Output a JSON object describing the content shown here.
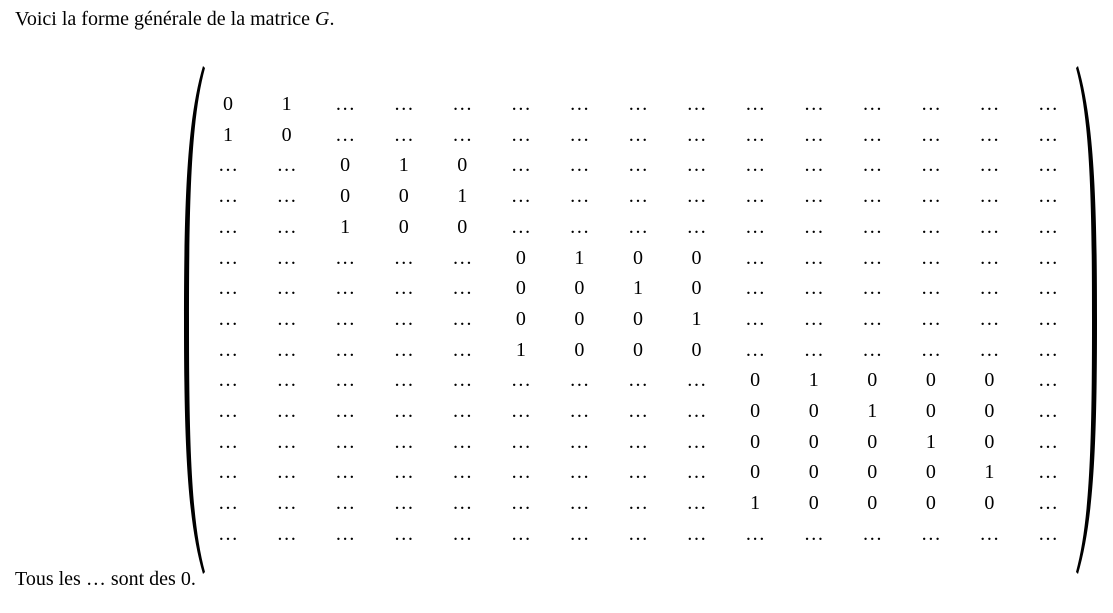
{
  "intro": {
    "text": "Voici la forme générale de la matrice ",
    "symbol": "G",
    "end": "."
  },
  "outro": {
    "before": "Tous les ",
    "dots": "…",
    "after": " sont des 0."
  },
  "matrix": {
    "ellipsis": "…",
    "rows": [
      [
        "0",
        "1",
        "…",
        "…",
        "…",
        "…",
        "…",
        "…",
        "…",
        "…",
        "…",
        "…",
        "…",
        "…",
        "…"
      ],
      [
        "1",
        "0",
        "…",
        "…",
        "…",
        "…",
        "…",
        "…",
        "…",
        "…",
        "…",
        "…",
        "…",
        "…",
        "…"
      ],
      [
        "…",
        "…",
        "0",
        "1",
        "0",
        "…",
        "…",
        "…",
        "…",
        "…",
        "…",
        "…",
        "…",
        "…",
        "…"
      ],
      [
        "…",
        "…",
        "0",
        "0",
        "1",
        "…",
        "…",
        "…",
        "…",
        "…",
        "…",
        "…",
        "…",
        "…",
        "…"
      ],
      [
        "…",
        "…",
        "1",
        "0",
        "0",
        "…",
        "…",
        "…",
        "…",
        "…",
        "…",
        "…",
        "…",
        "…",
        "…"
      ],
      [
        "…",
        "…",
        "…",
        "…",
        "…",
        "0",
        "1",
        "0",
        "0",
        "…",
        "…",
        "…",
        "…",
        "…",
        "…"
      ],
      [
        "…",
        "…",
        "…",
        "…",
        "…",
        "0",
        "0",
        "1",
        "0",
        "…",
        "…",
        "…",
        "…",
        "…",
        "…"
      ],
      [
        "…",
        "…",
        "…",
        "…",
        "…",
        "0",
        "0",
        "0",
        "1",
        "…",
        "…",
        "…",
        "…",
        "…",
        "…"
      ],
      [
        "…",
        "…",
        "…",
        "…",
        "…",
        "1",
        "0",
        "0",
        "0",
        "…",
        "…",
        "…",
        "…",
        "…",
        "…"
      ],
      [
        "…",
        "…",
        "…",
        "…",
        "…",
        "…",
        "…",
        "…",
        "…",
        "0",
        "1",
        "0",
        "0",
        "0",
        "…"
      ],
      [
        "…",
        "…",
        "…",
        "…",
        "…",
        "…",
        "…",
        "…",
        "…",
        "0",
        "0",
        "1",
        "0",
        "0",
        "…"
      ],
      [
        "…",
        "…",
        "…",
        "…",
        "…",
        "…",
        "…",
        "…",
        "…",
        "0",
        "0",
        "0",
        "1",
        "0",
        "…"
      ],
      [
        "…",
        "…",
        "…",
        "…",
        "…",
        "…",
        "…",
        "…",
        "…",
        "0",
        "0",
        "0",
        "0",
        "1",
        "…"
      ],
      [
        "…",
        "…",
        "…",
        "…",
        "…",
        "…",
        "…",
        "…",
        "…",
        "1",
        "0",
        "0",
        "0",
        "0",
        "…"
      ],
      [
        "…",
        "…",
        "…",
        "…",
        "…",
        "…",
        "…",
        "…",
        "…",
        "…",
        "…",
        "…",
        "…",
        "…",
        "…"
      ]
    ]
  }
}
